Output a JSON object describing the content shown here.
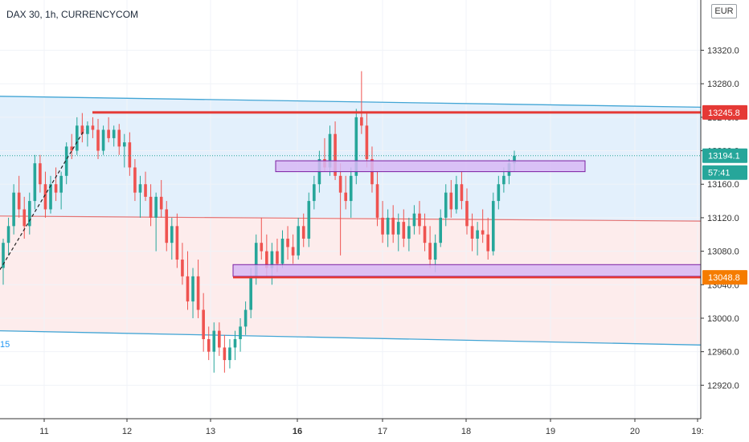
{
  "header": {
    "title": "DAX 30, 1h, CURRENCYCOM",
    "currency": "EUR"
  },
  "chart_data": {
    "type": "candlestick",
    "symbol": "DAX 30",
    "timeframe": "1h",
    "source": "CURRENCYCOM",
    "currency": "EUR",
    "ylim": [
      12880,
      13380
    ],
    "y_ticks": [
      "12920.0",
      "12960.0",
      "13000.0",
      "13040.0",
      "13080.0",
      "13120.0",
      "13160.0",
      "13200.0",
      "13240.0",
      "13280.0",
      "13320.0"
    ],
    "x_ticks": [
      {
        "label": "11",
        "bold": false
      },
      {
        "label": "12",
        "bold": false
      },
      {
        "label": "13",
        "bold": false
      },
      {
        "label": "16",
        "bold": true
      },
      {
        "label": "17",
        "bold": false
      },
      {
        "label": "18",
        "bold": false
      },
      {
        "label": "19",
        "bold": false
      },
      {
        "label": "20",
        "bold": false
      },
      {
        "label": "19:",
        "bold": false
      }
    ],
    "price_labels": [
      {
        "text": "13245.8",
        "value": 13245.8,
        "bg": "#e53935",
        "fg": "#ffffff"
      },
      {
        "text": "13194.1",
        "value": 13194.1,
        "bg": "#26a69a",
        "fg": "#ffffff"
      },
      {
        "text": "57:41",
        "value": 13180,
        "bg": "#26a69a",
        "fg": "#ffffff"
      },
      {
        "text": "13048.8",
        "value": 13048.8,
        "bg": "#f57c00",
        "fg": "#ffffff"
      }
    ],
    "left_edge_label": "15",
    "levels": {
      "resistance": 13245.8,
      "support": 13048.8,
      "last_price": 13194.1
    },
    "zones": [
      {
        "low": 13175,
        "high": 13188
      },
      {
        "low": 13050,
        "high": 13064
      }
    ],
    "channel": {
      "upper": [
        13265,
        13252
      ],
      "middle": [
        13122,
        13116
      ],
      "lower": [
        12985,
        12968
      ]
    },
    "candles": [
      [
        13060,
        13095,
        13040,
        13090
      ],
      [
        13090,
        13120,
        13075,
        13110
      ],
      [
        13110,
        13160,
        13100,
        13150
      ],
      [
        13150,
        13170,
        13120,
        13130
      ],
      [
        13130,
        13145,
        13095,
        13110
      ],
      [
        13110,
        13150,
        13100,
        13140
      ],
      [
        13140,
        13195,
        13130,
        13185
      ],
      [
        13185,
        13195,
        13150,
        13160
      ],
      [
        13160,
        13175,
        13120,
        13130
      ],
      [
        13130,
        13170,
        13125,
        13160
      ],
      [
        13160,
        13180,
        13140,
        13150
      ],
      [
        13150,
        13175,
        13130,
        13170
      ],
      [
        13170,
        13210,
        13160,
        13205
      ],
      [
        13205,
        13220,
        13190,
        13200
      ],
      [
        13200,
        13240,
        13195,
        13230
      ],
      [
        13230,
        13245,
        13210,
        13220
      ],
      [
        13220,
        13235,
        13205,
        13230
      ],
      [
        13230,
        13240,
        13215,
        13225
      ],
      [
        13225,
        13238,
        13190,
        13200
      ],
      [
        13200,
        13230,
        13195,
        13225
      ],
      [
        13225,
        13240,
        13210,
        13215
      ],
      [
        13215,
        13230,
        13205,
        13225
      ],
      [
        13225,
        13232,
        13195,
        13205
      ],
      [
        13205,
        13220,
        13180,
        13210
      ],
      [
        13210,
        13222,
        13170,
        13180
      ],
      [
        13180,
        13190,
        13140,
        13150
      ],
      [
        13150,
        13170,
        13120,
        13160
      ],
      [
        13160,
        13175,
        13140,
        13145
      ],
      [
        13145,
        13160,
        13110,
        13120
      ],
      [
        13120,
        13150,
        13080,
        13145
      ],
      [
        13145,
        13165,
        13120,
        13130
      ],
      [
        13130,
        13140,
        13080,
        13090
      ],
      [
        13090,
        13120,
        13070,
        13110
      ],
      [
        13110,
        13125,
        13060,
        13070
      ],
      [
        13070,
        13090,
        13040,
        13050
      ],
      [
        13050,
        13080,
        13010,
        13020
      ],
      [
        13020,
        13060,
        13000,
        13050
      ],
      [
        13050,
        13070,
        13000,
        13010
      ],
      [
        13010,
        13030,
        12960,
        12975
      ],
      [
        12975,
        12990,
        12950,
        12960
      ],
      [
        12960,
        12995,
        12935,
        12985
      ],
      [
        12985,
        12995,
        12955,
        12965
      ],
      [
        12965,
        12980,
        12935,
        12950
      ],
      [
        12950,
        12975,
        12940,
        12965
      ],
      [
        12965,
        12985,
        12950,
        12975
      ],
      [
        12975,
        13000,
        12960,
        12990
      ],
      [
        12990,
        13020,
        12980,
        13010
      ],
      [
        13010,
        13060,
        13000,
        13050
      ],
      [
        13050,
        13100,
        13040,
        13090
      ],
      [
        13090,
        13120,
        13070,
        13080
      ],
      [
        13080,
        13100,
        13050,
        13060
      ],
      [
        13060,
        13090,
        13040,
        13080
      ],
      [
        13080,
        13095,
        13055,
        13065
      ],
      [
        13065,
        13105,
        13060,
        13095
      ],
      [
        13095,
        13110,
        13070,
        13085
      ],
      [
        13085,
        13100,
        13065,
        13075
      ],
      [
        13075,
        13120,
        13070,
        13110
      ],
      [
        13110,
        13125,
        13085,
        13095
      ],
      [
        13095,
        13150,
        13085,
        13140
      ],
      [
        13140,
        13170,
        13130,
        13160
      ],
      [
        13160,
        13200,
        13150,
        13190
      ],
      [
        13190,
        13215,
        13175,
        13180
      ],
      [
        13180,
        13230,
        13170,
        13220
      ],
      [
        13220,
        13235,
        13165,
        13170
      ],
      [
        13170,
        13185,
        13075,
        13150
      ],
      [
        13150,
        13170,
        13130,
        13140
      ],
      [
        13140,
        13180,
        13120,
        13170
      ],
      [
        13170,
        13250,
        13160,
        13240
      ],
      [
        13240,
        13295,
        13220,
        13230
      ],
      [
        13230,
        13245,
        13180,
        13190
      ],
      [
        13190,
        13205,
        13150,
        13160
      ],
      [
        13160,
        13175,
        13110,
        13120
      ],
      [
        13120,
        13140,
        13090,
        13100
      ],
      [
        13100,
        13130,
        13085,
        13120
      ],
      [
        13120,
        13135,
        13090,
        13100
      ],
      [
        13100,
        13125,
        13080,
        13115
      ],
      [
        13115,
        13130,
        13085,
        13095
      ],
      [
        13095,
        13120,
        13080,
        13110
      ],
      [
        13110,
        13135,
        13100,
        13125
      ],
      [
        13125,
        13140,
        13100,
        13110
      ],
      [
        13110,
        13125,
        13080,
        13090
      ],
      [
        13090,
        13110,
        13060,
        13070
      ],
      [
        13070,
        13100,
        13055,
        13090
      ],
      [
        13090,
        13130,
        13085,
        13120
      ],
      [
        13120,
        13160,
        13110,
        13150
      ],
      [
        13150,
        13165,
        13120,
        13130
      ],
      [
        13130,
        13170,
        13125,
        13160
      ],
      [
        13160,
        13175,
        13130,
        13140
      ],
      [
        13140,
        13155,
        13100,
        13110
      ],
      [
        13110,
        13125,
        13080,
        13095
      ],
      [
        13095,
        13115,
        13075,
        13105
      ],
      [
        13105,
        13130,
        13090,
        13100
      ],
      [
        13100,
        13120,
        13070,
        13080
      ],
      [
        13080,
        13150,
        13075,
        13140
      ],
      [
        13140,
        13170,
        13130,
        13160
      ],
      [
        13160,
        13180,
        13150,
        13170
      ],
      [
        13170,
        13190,
        13160,
        13185
      ],
      [
        13185,
        13200,
        13175,
        13194
      ]
    ]
  }
}
